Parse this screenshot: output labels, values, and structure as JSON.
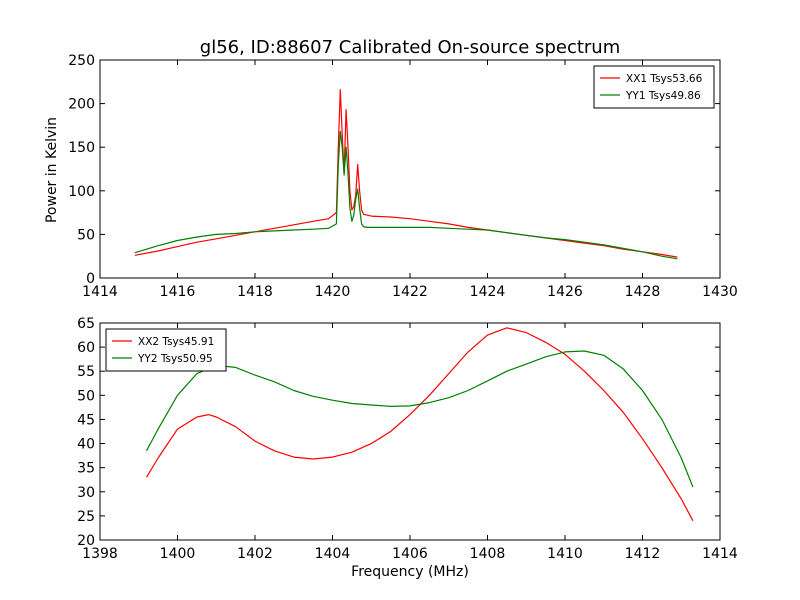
{
  "chart_data": [
    {
      "type": "line",
      "title": "gl56, ID:88607 Calibrated On-source spectrum",
      "xlabel": "",
      "ylabel": "Power in Kelvin",
      "xlim": [
        1414,
        1430
      ],
      "ylim": [
        0,
        250
      ],
      "xticks": [
        1414,
        1416,
        1418,
        1420,
        1422,
        1424,
        1426,
        1428,
        1430
      ],
      "yticks": [
        0,
        50,
        100,
        150,
        200,
        250
      ],
      "grid": false,
      "legend": "top-right",
      "series": [
        {
          "name": "XX1 Tsys53.66",
          "color": "#ff0000",
          "x": [
            1414.9,
            1415.5,
            1416.0,
            1416.5,
            1417.0,
            1417.5,
            1418.0,
            1418.5,
            1419.0,
            1419.5,
            1419.9,
            1420.1,
            1420.15,
            1420.2,
            1420.25,
            1420.3,
            1420.35,
            1420.4,
            1420.45,
            1420.5,
            1420.55,
            1420.6,
            1420.65,
            1420.7,
            1420.75,
            1420.8,
            1420.9,
            1421.0,
            1421.5,
            1422.0,
            1422.5,
            1423.0,
            1423.5,
            1424.0,
            1424.5,
            1425.0,
            1425.5,
            1426.0,
            1426.5,
            1427.0,
            1427.5,
            1428.0,
            1428.5,
            1428.9
          ],
          "y": [
            26,
            31,
            36,
            41,
            45,
            49,
            53,
            57,
            61,
            65,
            68,
            75,
            150,
            216,
            165,
            120,
            193,
            150,
            100,
            78,
            82,
            95,
            130,
            100,
            78,
            73,
            72,
            71,
            70,
            68,
            65,
            62,
            58,
            55,
            52,
            49,
            46,
            43,
            40,
            37,
            33,
            30,
            27,
            24
          ]
        },
        {
          "name": "YY1 Tsys49.86",
          "color": "#008000",
          "x": [
            1414.9,
            1415.5,
            1416.0,
            1416.5,
            1417.0,
            1417.5,
            1418.0,
            1418.5,
            1419.0,
            1419.5,
            1419.9,
            1420.1,
            1420.15,
            1420.2,
            1420.25,
            1420.3,
            1420.35,
            1420.4,
            1420.45,
            1420.5,
            1420.55,
            1420.6,
            1420.65,
            1420.7,
            1420.75,
            1420.8,
            1420.9,
            1421.0,
            1421.5,
            1422.0,
            1422.5,
            1423.0,
            1423.5,
            1424.0,
            1424.5,
            1425.0,
            1425.5,
            1426.0,
            1426.5,
            1427.0,
            1427.5,
            1428.0,
            1428.5,
            1428.9
          ],
          "y": [
            29,
            37,
            43,
            47,
            50,
            51,
            53,
            54,
            55,
            56,
            57,
            62,
            130,
            168,
            150,
            118,
            150,
            120,
            80,
            65,
            72,
            90,
            102,
            80,
            62,
            59,
            58,
            58,
            58,
            58,
            58,
            57,
            56,
            55,
            52,
            49,
            46,
            44,
            41,
            38,
            34,
            30,
            25,
            22
          ]
        }
      ]
    },
    {
      "type": "line",
      "title": "",
      "xlabel": "Frequency (MHz)",
      "ylabel": "",
      "xlim": [
        1398,
        1414
      ],
      "ylim": [
        20,
        65
      ],
      "xticks": [
        1398,
        1400,
        1402,
        1404,
        1406,
        1408,
        1410,
        1412,
        1414
      ],
      "yticks": [
        20,
        25,
        30,
        35,
        40,
        45,
        50,
        55,
        60,
        65
      ],
      "grid": false,
      "legend": "top-left",
      "series": [
        {
          "name": "XX2 Tsys45.91",
          "color": "#ff0000",
          "x": [
            1399.2,
            1399.5,
            1400.0,
            1400.5,
            1400.8,
            1401.0,
            1401.5,
            1402.0,
            1402.5,
            1403.0,
            1403.5,
            1404.0,
            1404.5,
            1405.0,
            1405.5,
            1406.0,
            1406.5,
            1407.0,
            1407.5,
            1408.0,
            1408.5,
            1409.0,
            1409.5,
            1410.0,
            1410.5,
            1411.0,
            1411.5,
            1412.0,
            1412.5,
            1413.0,
            1413.3
          ],
          "y": [
            33,
            37,
            43,
            45.5,
            46,
            45.5,
            43.5,
            40.5,
            38.5,
            37.2,
            36.8,
            37.2,
            38.2,
            40,
            42.5,
            46,
            50,
            54.5,
            59,
            62.5,
            64,
            63,
            61,
            58.5,
            55,
            51,
            46.5,
            41,
            35,
            28.5,
            24
          ]
        },
        {
          "name": "YY2 Tsys50.95",
          "color": "#008000",
          "x": [
            1399.2,
            1399.5,
            1400.0,
            1400.5,
            1401.0,
            1401.5,
            1402.0,
            1402.5,
            1403.0,
            1403.5,
            1404.0,
            1404.5,
            1405.0,
            1405.5,
            1406.0,
            1406.5,
            1407.0,
            1407.5,
            1408.0,
            1408.5,
            1409.0,
            1409.5,
            1410.0,
            1410.5,
            1411.0,
            1411.5,
            1412.0,
            1412.5,
            1413.0,
            1413.3
          ],
          "y": [
            38.5,
            43,
            50,
            54.5,
            56.2,
            55.8,
            54.2,
            52.8,
            51,
            49.8,
            49,
            48.3,
            48,
            47.7,
            47.8,
            48.5,
            49.5,
            51,
            53,
            55,
            56.5,
            58,
            59,
            59.2,
            58.3,
            55.5,
            51,
            45,
            37,
            31
          ]
        }
      ]
    }
  ]
}
